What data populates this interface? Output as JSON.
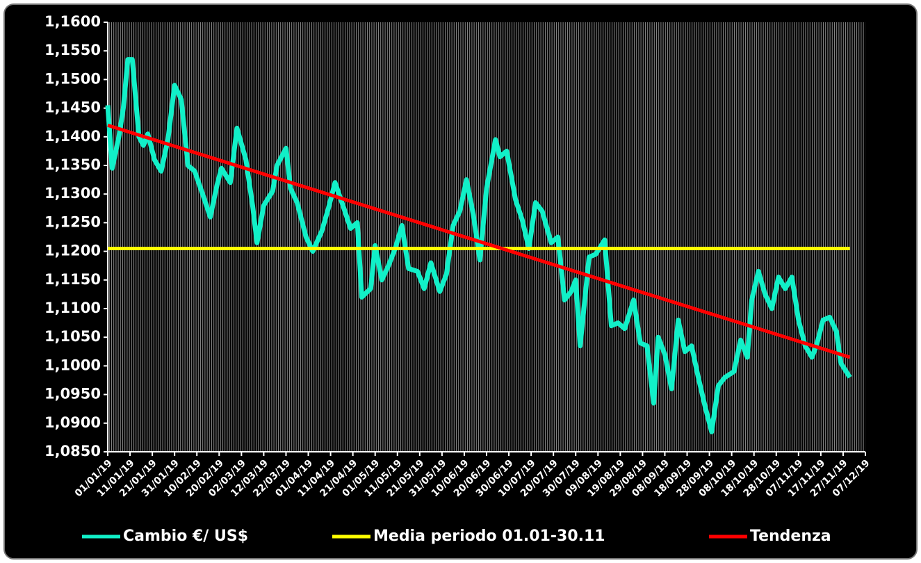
{
  "chart_data": {
    "type": "line",
    "categories": [
      "01/01/19",
      "11/01/19",
      "21/01/19",
      "31/01/19",
      "10/02/19",
      "20/02/19",
      "02/03/19",
      "12/03/19",
      "22/03/19",
      "01/04/19",
      "11/04/19",
      "21/04/19",
      "01/05/19",
      "11/05/19",
      "21/05/19",
      "31/05/19",
      "10/06/19",
      "20/06/19",
      "30/06/19",
      "10/07/19",
      "20/07/19",
      "30/07/19",
      "09/08/19",
      "19/08/19",
      "29/08/19",
      "08/09/19",
      "18/09/19",
      "28/09/19",
      "08/10/19",
      "18/10/19",
      "28/10/19",
      "07/11/19",
      "17/11/19",
      "27/11/19",
      "07/12/19"
    ],
    "series": [
      {
        "name": "Cambio €/ US$",
        "color": "#11f0c8",
        "x": [
          "01/01/19",
          "03/01/19",
          "06/01/19",
          "08/01/19",
          "10/01/19",
          "12/01/19",
          "15/01/19",
          "17/01/19",
          "19/01/19",
          "22/01/19",
          "25/01/19",
          "28/01/19",
          "31/01/19",
          "03/02/19",
          "06/02/19",
          "09/02/19",
          "13/02/19",
          "16/02/19",
          "19/02/19",
          "21/02/19",
          "25/02/19",
          "28/02/19",
          "04/03/19",
          "07/03/19",
          "09/03/19",
          "12/03/19",
          "16/03/19",
          "18/03/19",
          "22/03/19",
          "24/03/19",
          "27/03/19",
          "31/03/19",
          "03/04/19",
          "07/04/19",
          "10/04/19",
          "13/04/19",
          "17/04/19",
          "20/04/19",
          "23/04/19",
          "25/04/19",
          "29/04/19",
          "01/05/19",
          "04/05/19",
          "07/05/19",
          "10/05/19",
          "13/05/19",
          "16/05/19",
          "20/05/19",
          "23/05/19",
          "26/05/19",
          "30/05/19",
          "02/06/19",
          "05/06/19",
          "08/06/19",
          "11/06/19",
          "14/06/19",
          "17/06/19",
          "20/06/19",
          "24/06/19",
          "26/06/19",
          "29/06/19",
          "03/07/19",
          "06/07/19",
          "09/07/19",
          "12/07/19",
          "15/07/19",
          "19/07/19",
          "22/07/19",
          "25/07/19",
          "28/07/19",
          "30/07/19",
          "01/08/19",
          "05/08/19",
          "08/08/19",
          "12/08/19",
          "15/08/19",
          "18/08/19",
          "21/08/19",
          "25/08/19",
          "28/08/19",
          "31/08/19",
          "03/09/19",
          "05/09/19",
          "08/09/19",
          "11/09/19",
          "14/09/19",
          "17/09/19",
          "20/09/19",
          "23/09/19",
          "26/09/19",
          "29/09/19",
          "02/10/19",
          "05/10/19",
          "09/10/19",
          "12/10/19",
          "15/10/19",
          "17/10/19",
          "20/10/19",
          "23/10/19",
          "26/10/19",
          "29/10/19",
          "01/11/19",
          "04/11/19",
          "07/11/19",
          "10/11/19",
          "13/11/19",
          "15/11/19",
          "18/11/19",
          "21/11/19",
          "24/11/19",
          "26/11/19",
          "30/11/19"
        ],
        "values": [
          1.1455,
          1.1345,
          1.14,
          1.145,
          1.1535,
          1.1535,
          1.14,
          1.1385,
          1.1405,
          1.136,
          1.134,
          1.1395,
          1.149,
          1.1465,
          1.135,
          1.134,
          1.1295,
          1.126,
          1.1315,
          1.1345,
          1.132,
          1.1415,
          1.136,
          1.128,
          1.1215,
          1.128,
          1.1305,
          1.135,
          1.138,
          1.131,
          1.1285,
          1.1225,
          1.12,
          1.1235,
          1.1275,
          1.132,
          1.1275,
          1.124,
          1.125,
          1.112,
          1.1135,
          1.121,
          1.115,
          1.1175,
          1.1205,
          1.1245,
          1.117,
          1.1165,
          1.1135,
          1.118,
          1.113,
          1.116,
          1.1245,
          1.127,
          1.1325,
          1.1265,
          1.1185,
          1.131,
          1.1395,
          1.1365,
          1.1375,
          1.129,
          1.1255,
          1.1205,
          1.1285,
          1.127,
          1.1215,
          1.1225,
          1.1115,
          1.113,
          1.115,
          1.1035,
          1.119,
          1.1195,
          1.122,
          1.107,
          1.1075,
          1.1065,
          1.1115,
          1.104,
          1.1035,
          1.0935,
          1.105,
          1.102,
          1.096,
          1.108,
          1.1025,
          1.1035,
          1.098,
          1.093,
          1.0885,
          1.0965,
          1.098,
          1.099,
          1.1045,
          1.1015,
          1.1115,
          1.1165,
          1.1125,
          1.11,
          1.1155,
          1.1135,
          1.1155,
          1.108,
          1.1035,
          1.1015,
          1.1035,
          1.108,
          1.1085,
          1.106,
          1.1005,
          1.098
        ]
      },
      {
        "name": "Media periodo 01.01-30.11",
        "color": "#ffff00",
        "x": [
          "01/01/19",
          "30/11/19"
        ],
        "values": [
          1.1205,
          1.1205
        ]
      },
      {
        "name": "Tendenza",
        "color": "#ff0000",
        "x": [
          "01/01/19",
          "30/11/19"
        ],
        "values": [
          1.142,
          1.1015
        ]
      }
    ],
    "xlim": [
      "01/01/19",
      "07/12/19"
    ],
    "ylim": [
      1.085,
      1.16
    ],
    "yticks": [
      {
        "value": 1.085,
        "label": "1,0850"
      },
      {
        "value": 1.09,
        "label": "1,0900"
      },
      {
        "value": 1.095,
        "label": "1,0950"
      },
      {
        "value": 1.1,
        "label": "1,1000"
      },
      {
        "value": 1.105,
        "label": "1,1050"
      },
      {
        "value": 1.11,
        "label": "1,1100"
      },
      {
        "value": 1.115,
        "label": "1,1150"
      },
      {
        "value": 1.12,
        "label": "1,1200"
      },
      {
        "value": 1.125,
        "label": "1,1250"
      },
      {
        "value": 1.13,
        "label": "1,1300"
      },
      {
        "value": 1.135,
        "label": "1,1350"
      },
      {
        "value": 1.14,
        "label": "1,1400"
      },
      {
        "value": 1.145,
        "label": "1,1450"
      },
      {
        "value": 1.15,
        "label": "1,1500"
      },
      {
        "value": 1.155,
        "label": "1,1550"
      },
      {
        "value": 1.16,
        "label": "1,1600"
      }
    ],
    "legend": "bottom"
  }
}
